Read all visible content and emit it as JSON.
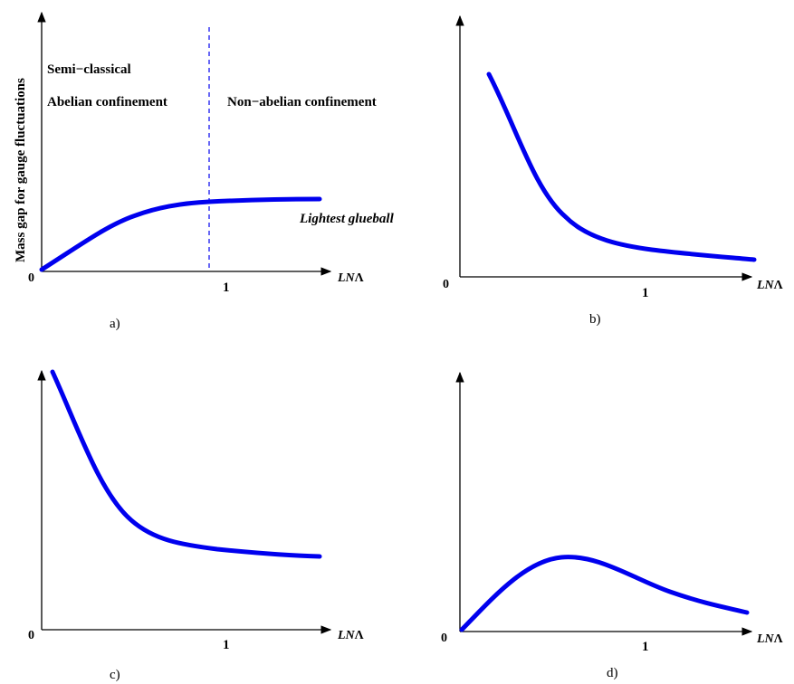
{
  "colors": {
    "curve": "#0000ee",
    "axis": "#000000"
  },
  "panels": [
    {
      "id": "a",
      "caption": "a)",
      "ylabel": "Mass gap  for gauge fluctuations",
      "xlabel_italic": "LN",
      "xlabel_greek": "Λ",
      "origin_label": "0",
      "tick_label": "1",
      "region_top_left": "Semi−classical",
      "region_left": "Abelian confinement",
      "region_right": "Non−abelian confinement",
      "curve_label": "Lightest glueball"
    },
    {
      "id": "b",
      "caption": "b)",
      "xlabel_italic": "LN",
      "xlabel_greek": "Λ",
      "origin_label": "0",
      "tick_label": "1"
    },
    {
      "id": "c",
      "caption": "c)",
      "xlabel_italic": "LN",
      "xlabel_greek": "Λ",
      "origin_label": "0",
      "tick_label": "1"
    },
    {
      "id": "d",
      "caption": "d)",
      "xlabel_italic": "LN",
      "xlabel_greek": "Λ",
      "origin_label": "0",
      "tick_label": "1"
    }
  ]
}
